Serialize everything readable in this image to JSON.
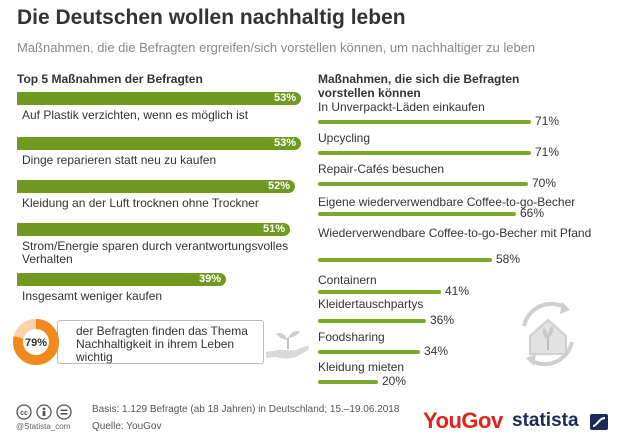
{
  "title": "Die Deutschen wollen nachhaltig leben",
  "subtitle": "Maßnahmen, die die Befragten ergreifen/sich vorstellen können, um nachhaltiger zu leben",
  "callout": {
    "value": "79%",
    "value_fraction": 0.79,
    "text": "der Befragten finden das Thema Nachhaltigkeit in ihrem Leben wichtig"
  },
  "footer": {
    "credit": "@Statista_com",
    "basis": "Basis: 1.129 Befragte (ab 18 Jahren) in Deutschland; 15.–19.06.2018",
    "source": "Quelle: YouGov",
    "brand_yougov": "YouGov",
    "brand_statista": "statista"
  },
  "colors": {
    "bar_left": "#6f9a1f",
    "bar_right": "#7aa82b",
    "donut_fill": "#f08a1c",
    "donut_track": "#f7d3a8",
    "yougov": "#e2231a",
    "statista": "#1b2c57"
  },
  "icons": [
    "cc-icon",
    "by-icon",
    "equals-icon",
    "hand-plant-icon",
    "eco-house-icon",
    "statista-logo-icon"
  ],
  "chart_data": [
    {
      "type": "bar",
      "orientation": "horizontal",
      "title": "Top 5 Maßnahmen der Befragten",
      "unit": "%",
      "xlim": [
        0,
        100
      ],
      "categories": [
        "Auf Plastik verzichten, wenn es möglich ist",
        "Dinge reparieren statt neu zu kaufen",
        "Kleidung an der Luft trocknen ohne Trockner",
        "Strom/Energie sparen durch verantwortungsvolles Verhalten",
        "Insgesamt weniger kaufen"
      ],
      "values": [
        53,
        53,
        52,
        51,
        39
      ],
      "value_labels": [
        "53%",
        "53%",
        "52%",
        "51%",
        "39%"
      ]
    },
    {
      "type": "bar",
      "orientation": "horizontal",
      "title": "Maßnahmen, die sich die Befragten vorstellen können",
      "unit": "%",
      "xlim": [
        0,
        100
      ],
      "categories": [
        "In Unverpackt-Läden einkaufen",
        "Upcycling",
        "Repair-Cafés besuchen",
        "Eigene wiederverwendbare Coffee-to-go-Becher",
        "Wiederverwendbare Coffee-to-go-Becher mit Pfand",
        "Containern",
        "Kleidertauschpartys",
        "Foodsharing",
        "Kleidung mieten"
      ],
      "values": [
        71,
        71,
        70,
        66,
        58,
        41,
        36,
        34,
        20
      ],
      "value_labels": [
        "71%",
        "71%",
        "70%",
        "66%",
        "58%",
        "41%",
        "36%",
        "34%",
        "20%"
      ]
    }
  ]
}
